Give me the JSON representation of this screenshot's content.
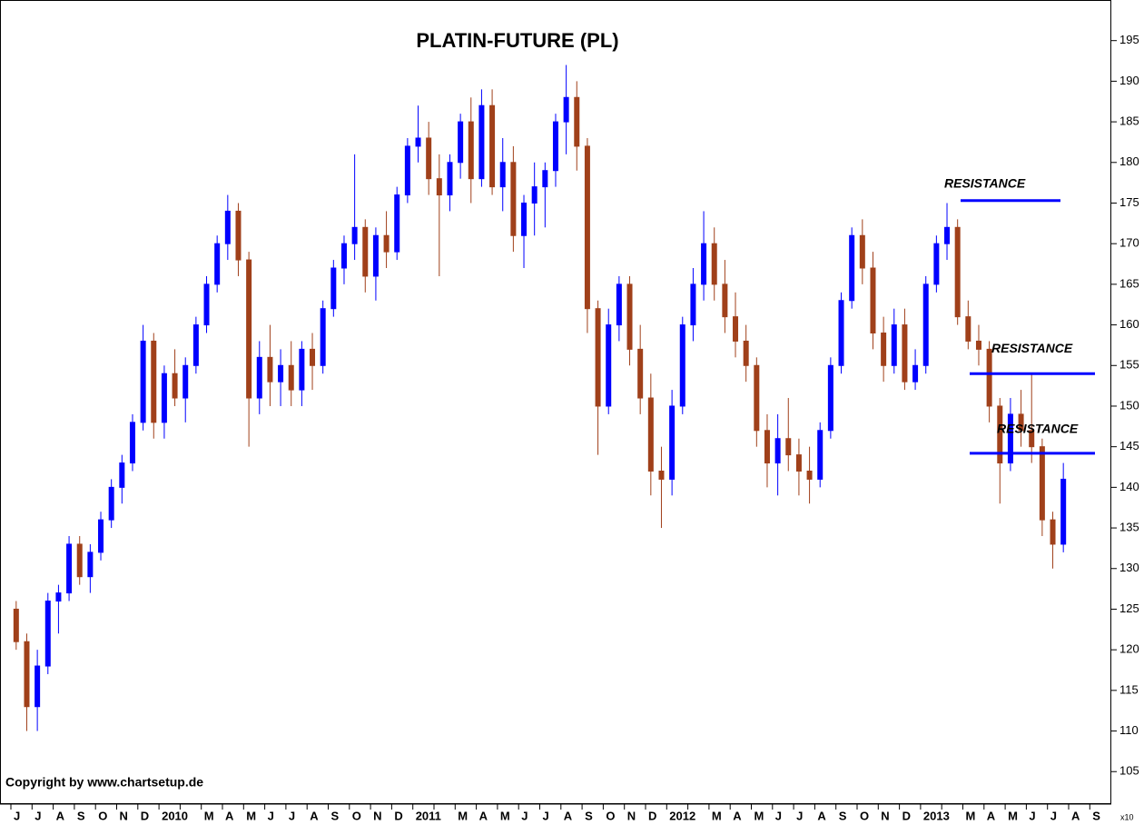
{
  "chart_data": {
    "type": "candlestick",
    "title": "PLATIN-FUTURE  (PL)",
    "footer": "Copyright by www.chartsetup.de",
    "y_axis_multiplier": "x10",
    "up_color": "#0000ff",
    "down_color": "#a0401a",
    "ylim": [
      101,
      200
    ],
    "yticks": [
      105,
      110,
      115,
      120,
      125,
      130,
      135,
      140,
      145,
      150,
      155,
      160,
      165,
      170,
      175,
      180,
      185,
      190,
      195
    ],
    "months": [
      "J",
      "J",
      "A",
      "S",
      "O",
      "N",
      "D",
      "2010",
      null,
      "M",
      "A",
      "M",
      "J",
      "J",
      "A",
      "S",
      "O",
      "N",
      "D",
      "2011",
      null,
      "M",
      "A",
      "M",
      "J",
      "J",
      "A",
      "S",
      "O",
      "N",
      "D",
      "2012",
      null,
      "M",
      "A",
      "M",
      "J",
      "J",
      "A",
      "S",
      "O",
      "N",
      "D",
      "2013",
      null,
      "M",
      "A",
      "M",
      "J",
      "J",
      "A",
      "S"
    ],
    "candles": [
      [
        125,
        126,
        120,
        121
      ],
      [
        121,
        122,
        110,
        113
      ],
      [
        113,
        120,
        110,
        118
      ],
      [
        118,
        127,
        117,
        126
      ],
      [
        126,
        128,
        122,
        127
      ],
      [
        127,
        134,
        126,
        133
      ],
      [
        133,
        134,
        128,
        129
      ],
      [
        129,
        133,
        127,
        132
      ],
      [
        132,
        137,
        131,
        136
      ],
      [
        136,
        141,
        135,
        140
      ],
      [
        140,
        144,
        138,
        143
      ],
      [
        143,
        149,
        142,
        148
      ],
      [
        148,
        160,
        147,
        158
      ],
      [
        158,
        159,
        146,
        148
      ],
      [
        148,
        155,
        146,
        154
      ],
      [
        154,
        157,
        150,
        151
      ],
      [
        151,
        156,
        148,
        155
      ],
      [
        155,
        161,
        154,
        160
      ],
      [
        160,
        166,
        159,
        165
      ],
      [
        165,
        171,
        164,
        170
      ],
      [
        170,
        176,
        168,
        174
      ],
      [
        174,
        175,
        166,
        168
      ],
      [
        168,
        169,
        145,
        151
      ],
      [
        151,
        158,
        149,
        156
      ],
      [
        156,
        160,
        150,
        153
      ],
      [
        153,
        157,
        150,
        155
      ],
      [
        155,
        158,
        150,
        152
      ],
      [
        152,
        158,
        150,
        157
      ],
      [
        157,
        159,
        152,
        155
      ],
      [
        155,
        163,
        154,
        162
      ],
      [
        162,
        168,
        161,
        167
      ],
      [
        167,
        171,
        165,
        170
      ],
      [
        170,
        181,
        168,
        172
      ],
      [
        172,
        173,
        164,
        166
      ],
      [
        166,
        172,
        163,
        171
      ],
      [
        171,
        174,
        167,
        169
      ],
      [
        169,
        177,
        168,
        176
      ],
      [
        176,
        183,
        175,
        182
      ],
      [
        182,
        187,
        180,
        183
      ],
      [
        183,
        185,
        176,
        178
      ],
      [
        178,
        181,
        166,
        176
      ],
      [
        176,
        181,
        174,
        180
      ],
      [
        180,
        186,
        178,
        185
      ],
      [
        185,
        188,
        175,
        178
      ],
      [
        178,
        189,
        177,
        187
      ],
      [
        187,
        189,
        176,
        177
      ],
      [
        177,
        183,
        174,
        180
      ],
      [
        180,
        182,
        169,
        171
      ],
      [
        171,
        176,
        167,
        175
      ],
      [
        175,
        180,
        171,
        177
      ],
      [
        177,
        180,
        172,
        179
      ],
      [
        179,
        186,
        177,
        185
      ],
      [
        185,
        192,
        181,
        188
      ],
      [
        188,
        190,
        179,
        182
      ],
      [
        182,
        183,
        159,
        162
      ],
      [
        162,
        163,
        144,
        150
      ],
      [
        150,
        162,
        149,
        160
      ],
      [
        160,
        166,
        158,
        165
      ],
      [
        165,
        166,
        155,
        157
      ],
      [
        157,
        160,
        149,
        151
      ],
      [
        151,
        154,
        139,
        142
      ],
      [
        142,
        145,
        135,
        141
      ],
      [
        141,
        152,
        139,
        150
      ],
      [
        150,
        161,
        149,
        160
      ],
      [
        160,
        167,
        158,
        165
      ],
      [
        165,
        174,
        163,
        170
      ],
      [
        170,
        172,
        163,
        165
      ],
      [
        165,
        168,
        159,
        161
      ],
      [
        161,
        164,
        156,
        158
      ],
      [
        158,
        160,
        153,
        155
      ],
      [
        155,
        156,
        145,
        147
      ],
      [
        147,
        149,
        140,
        143
      ],
      [
        143,
        149,
        139,
        146
      ],
      [
        146,
        151,
        142,
        144
      ],
      [
        144,
        146,
        139,
        142
      ],
      [
        142,
        145,
        138,
        141
      ],
      [
        141,
        148,
        140,
        147
      ],
      [
        147,
        156,
        146,
        155
      ],
      [
        155,
        164,
        154,
        163
      ],
      [
        163,
        172,
        162,
        171
      ],
      [
        171,
        173,
        165,
        167
      ],
      [
        167,
        169,
        157,
        159
      ],
      [
        159,
        161,
        153,
        155
      ],
      [
        155,
        162,
        154,
        160
      ],
      [
        160,
        162,
        152,
        153
      ],
      [
        153,
        157,
        152,
        155
      ],
      [
        155,
        166,
        154,
        165
      ],
      [
        165,
        171,
        164,
        170
      ],
      [
        170,
        175,
        168,
        172
      ],
      [
        172,
        173,
        160,
        161
      ],
      [
        161,
        163,
        157,
        158
      ],
      [
        158,
        160,
        155,
        157
      ],
      [
        157,
        158,
        148,
        150
      ],
      [
        150,
        151,
        138,
        143
      ],
      [
        143,
        151,
        142,
        149
      ],
      [
        149,
        152,
        145,
        147
      ],
      [
        147,
        154,
        143,
        145
      ],
      [
        145,
        146,
        134,
        136
      ],
      [
        136,
        137,
        130,
        133
      ],
      [
        133,
        143,
        132,
        141
      ]
    ],
    "annotations": [
      {
        "label": "RESISTANCE",
        "value": 175.3
      },
      {
        "label": "RESISTANCE",
        "value": 154
      },
      {
        "label": "RESISTANCE",
        "value": 144.2
      }
    ]
  }
}
